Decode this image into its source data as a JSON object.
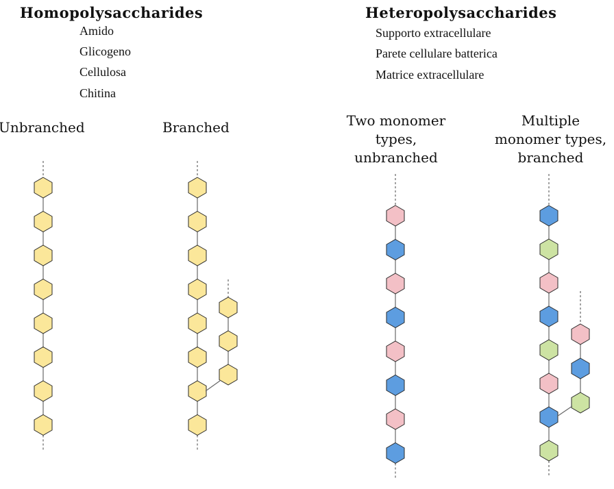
{
  "homo": {
    "title": "Homopolysaccharides",
    "items": [
      "Amido",
      "Glicogeno",
      "Cellulosa",
      "Chitina"
    ],
    "col1": "Unbranched",
    "col2": "Branched"
  },
  "hetero": {
    "title": "Heteropolysaccharides",
    "items": [
      "Supporto extracellulare",
      "Parete cellulare batterica",
      "Matrice extracellulare"
    ],
    "col1": "Two monomer\ntypes,\nunbranched",
    "col2": "Multiple\nmonomer types,\nbranched"
  },
  "colors": {
    "yellow": "#fbe79a",
    "pink": "#f3c0c6",
    "blue": "#5d9de0",
    "green": "#cde3a3",
    "stroke": "#2a2a2a",
    "line": "#666666"
  },
  "chains": {
    "unbranched_homo": [
      "yellow",
      "yellow",
      "yellow",
      "yellow",
      "yellow",
      "yellow",
      "yellow",
      "yellow"
    ],
    "branched_homo_main": [
      "yellow",
      "yellow",
      "yellow",
      "yellow",
      "yellow",
      "yellow",
      "yellow",
      "yellow"
    ],
    "branched_homo_side": [
      "yellow",
      "yellow",
      "yellow"
    ],
    "two_types": [
      "pink",
      "blue",
      "pink",
      "blue",
      "pink",
      "blue",
      "pink",
      "blue"
    ],
    "multi_main": [
      "blue",
      "green",
      "pink",
      "blue",
      "green",
      "pink",
      "blue",
      "green"
    ],
    "multi_side": [
      "pink",
      "blue",
      "green"
    ]
  }
}
